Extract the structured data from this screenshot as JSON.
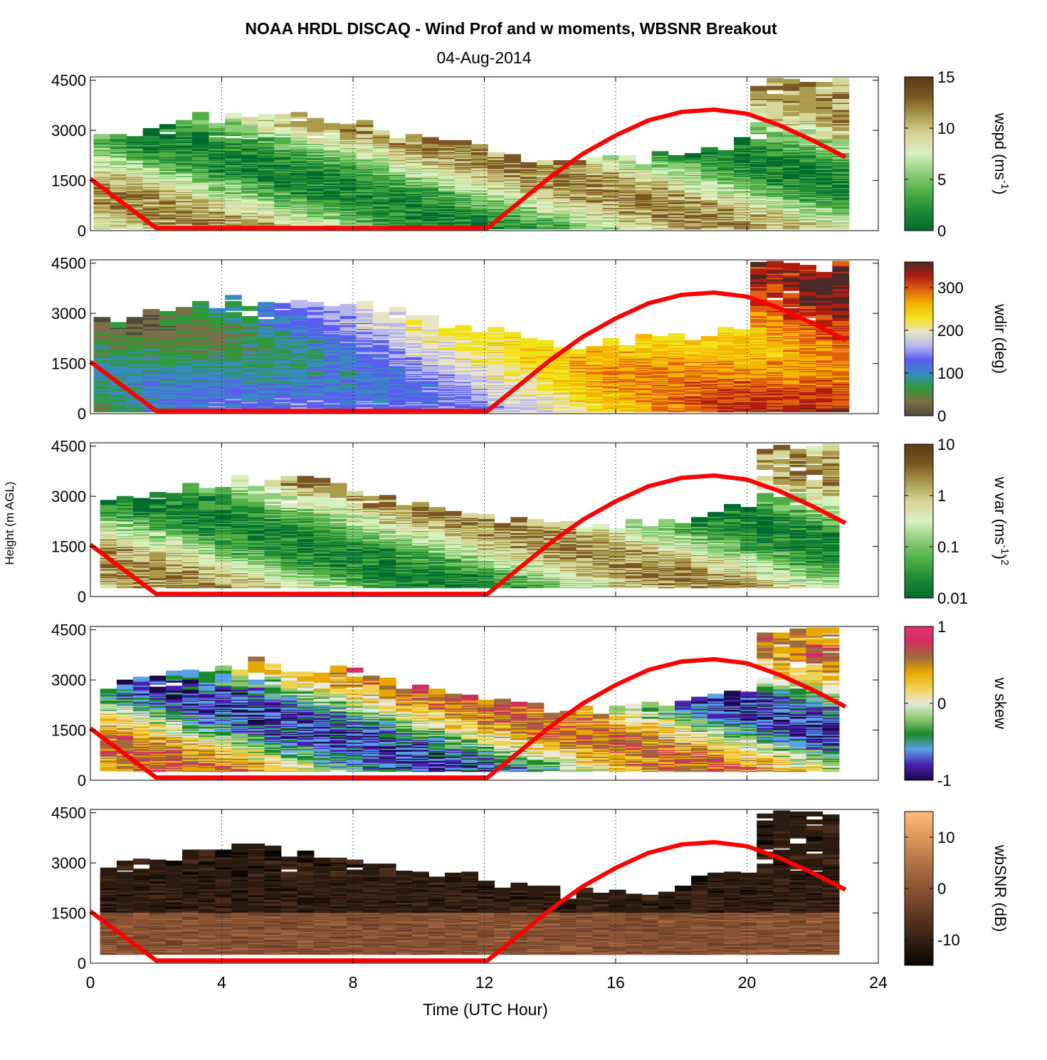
{
  "title": "NOAA HRDL DISCAQ - Wind Prof and w moments, WBSNR Breakout",
  "subtitle": "04-Aug-2014",
  "ylabel": "Height (m AGL)",
  "xlabel": "Time (UTC Hour)",
  "chart_data": [
    {
      "type": "heatmap",
      "variable": "wspd",
      "colorbar_label": "wspd (ms",
      "colorbar_sup": "-1",
      "colorbar_tail": ")",
      "cbar_ticks": [
        "0",
        "5",
        "10",
        "15"
      ],
      "clim": [
        0,
        15
      ],
      "colors": [
        "#006b2e",
        "#1e8a36",
        "#4fae45",
        "#8ccd7a",
        "#d8efc0",
        "#d6d79a",
        "#a99a4c",
        "#7b5523",
        "#5b3a13"
      ],
      "x_ticks": [
        0,
        4,
        8,
        12,
        16,
        20,
        24
      ],
      "y_ticks": [
        0,
        1500,
        3000,
        4500
      ],
      "xlim": [
        0,
        24
      ],
      "ylim": [
        0,
        4600
      ],
      "data_extent": [
        0.1,
        23.1
      ]
    },
    {
      "type": "heatmap",
      "variable": "wdir",
      "colorbar_label": "wdir (deg)",
      "colorbar_sup": "",
      "colorbar_tail": "",
      "cbar_ticks": [
        "0",
        "100",
        "200",
        "300"
      ],
      "clim": [
        0,
        360
      ],
      "colors": [
        "#4e4a3a",
        "#7c6e48",
        "#2f9a3a",
        "#3a8ac2",
        "#5a5ef0",
        "#b8b8ee",
        "#e8e4c4",
        "#f2e21a",
        "#f4b400",
        "#e06010",
        "#b01c10",
        "#4a2a28"
      ],
      "x_ticks": [
        0,
        4,
        8,
        12,
        16,
        20,
        24
      ],
      "y_ticks": [
        0,
        1500,
        3000,
        4500
      ],
      "xlim": [
        0,
        24
      ],
      "ylim": [
        0,
        4600
      ],
      "data_extent": [
        0.1,
        23.1
      ]
    },
    {
      "type": "heatmap",
      "variable": "w var",
      "colorbar_label": "w var (ms",
      "colorbar_sup": "-1",
      "colorbar_tail": ")",
      "colorbar_tail_sup": "2",
      "cbar_ticks": [
        "0.01",
        "0.1",
        "1",
        "10"
      ],
      "clim": [
        0.01,
        10
      ],
      "scale": "log",
      "colors": [
        "#006b2e",
        "#1e8a36",
        "#4fae45",
        "#8ccd7a",
        "#d8efc0",
        "#d6d79a",
        "#a99a4c",
        "#7b5523",
        "#5b3a13"
      ],
      "x_ticks": [
        0,
        4,
        8,
        12,
        16,
        20,
        24
      ],
      "y_ticks": [
        0,
        1500,
        3000,
        4500
      ],
      "xlim": [
        0,
        24
      ],
      "ylim": [
        0,
        4600
      ],
      "data_extent": [
        0.3,
        22.8
      ]
    },
    {
      "type": "heatmap",
      "variable": "w skew",
      "colorbar_label": "w skew",
      "colorbar_sup": "",
      "colorbar_tail": "",
      "cbar_ticks": [
        "-1",
        "0",
        "1"
      ],
      "clim": [
        -1,
        1
      ],
      "colors": [
        "#1a0a4a",
        "#4a20b0",
        "#5aa0e8",
        "#1a8a2a",
        "#8cc870",
        "#e8e8dc",
        "#f2d050",
        "#e6a800",
        "#a06a3a",
        "#d03060",
        "#e83070"
      ],
      "x_ticks": [
        0,
        4,
        8,
        12,
        16,
        20,
        24
      ],
      "y_ticks": [
        0,
        1500,
        3000,
        4500
      ],
      "xlim": [
        0,
        24
      ],
      "ylim": [
        0,
        4600
      ],
      "data_extent": [
        0.3,
        22.8
      ]
    },
    {
      "type": "heatmap",
      "variable": "wbSNR",
      "colorbar_label": "wbSNR (dB)",
      "colorbar_sup": "",
      "colorbar_tail": "",
      "cbar_ticks": [
        "-10",
        "0",
        "10"
      ],
      "clim": [
        -15,
        15
      ],
      "colors": [
        "#0a0604",
        "#2a1a10",
        "#4a2c1c",
        "#6a4028",
        "#8a5434",
        "#a86a42",
        "#c88452",
        "#e89e62",
        "#ffbb80"
      ],
      "x_ticks": [
        0,
        4,
        8,
        12,
        16,
        20,
        24
      ],
      "y_ticks": [
        0,
        1500,
        3000,
        4500
      ],
      "xlim": [
        0,
        24
      ],
      "ylim": [
        0,
        4600
      ],
      "data_extent": [
        0.3,
        22.8
      ]
    }
  ],
  "overlay_curve": {
    "color": "#ff0000",
    "x": [
      0,
      2,
      12.1,
      13,
      14,
      15,
      16,
      17,
      18,
      19,
      20,
      21,
      22,
      23
    ],
    "y": [
      1550,
      80,
      80,
      800,
      1600,
      2300,
      2850,
      3300,
      3550,
      3620,
      3500,
      3150,
      2700,
      2200
    ]
  }
}
